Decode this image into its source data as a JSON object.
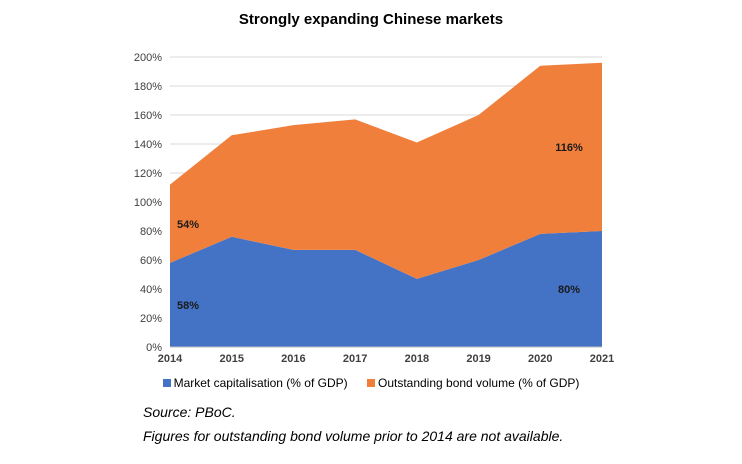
{
  "chart_data": {
    "type": "area",
    "stacked": true,
    "title": "Strongly expanding Chinese markets",
    "categories": [
      "2014",
      "2015",
      "2016",
      "2017",
      "2018",
      "2019",
      "2020",
      "2021"
    ],
    "series": [
      {
        "name": "Market capitalisation (% of GDP)",
        "color": "#4472C4",
        "values": [
          58,
          76,
          67,
          67,
          47,
          60,
          78,
          80
        ]
      },
      {
        "name": "Outstanding bond volume (% of GDP)",
        "color": "#F07F3C",
        "values": [
          54,
          70,
          86,
          90,
          94,
          100,
          116,
          116
        ]
      }
    ],
    "ylim": [
      0,
      200
    ],
    "yticks": [
      "0%",
      "20%",
      "40%",
      "60%",
      "80%",
      "100%",
      "120%",
      "140%",
      "160%",
      "180%",
      "200%"
    ],
    "grid": true,
    "legend": "bottom",
    "data_labels": [
      {
        "series": 0,
        "category": "2014",
        "text": "58%"
      },
      {
        "series": 1,
        "category": "2014",
        "text": "54%"
      },
      {
        "series": 0,
        "category": "2021",
        "text": "80%"
      },
      {
        "series": 1,
        "category": "2021",
        "text": "116%"
      }
    ]
  },
  "notes": {
    "source": "Source: PBoC.",
    "footnote": "Figures for outstanding bond volume prior to 2014 are not available."
  }
}
